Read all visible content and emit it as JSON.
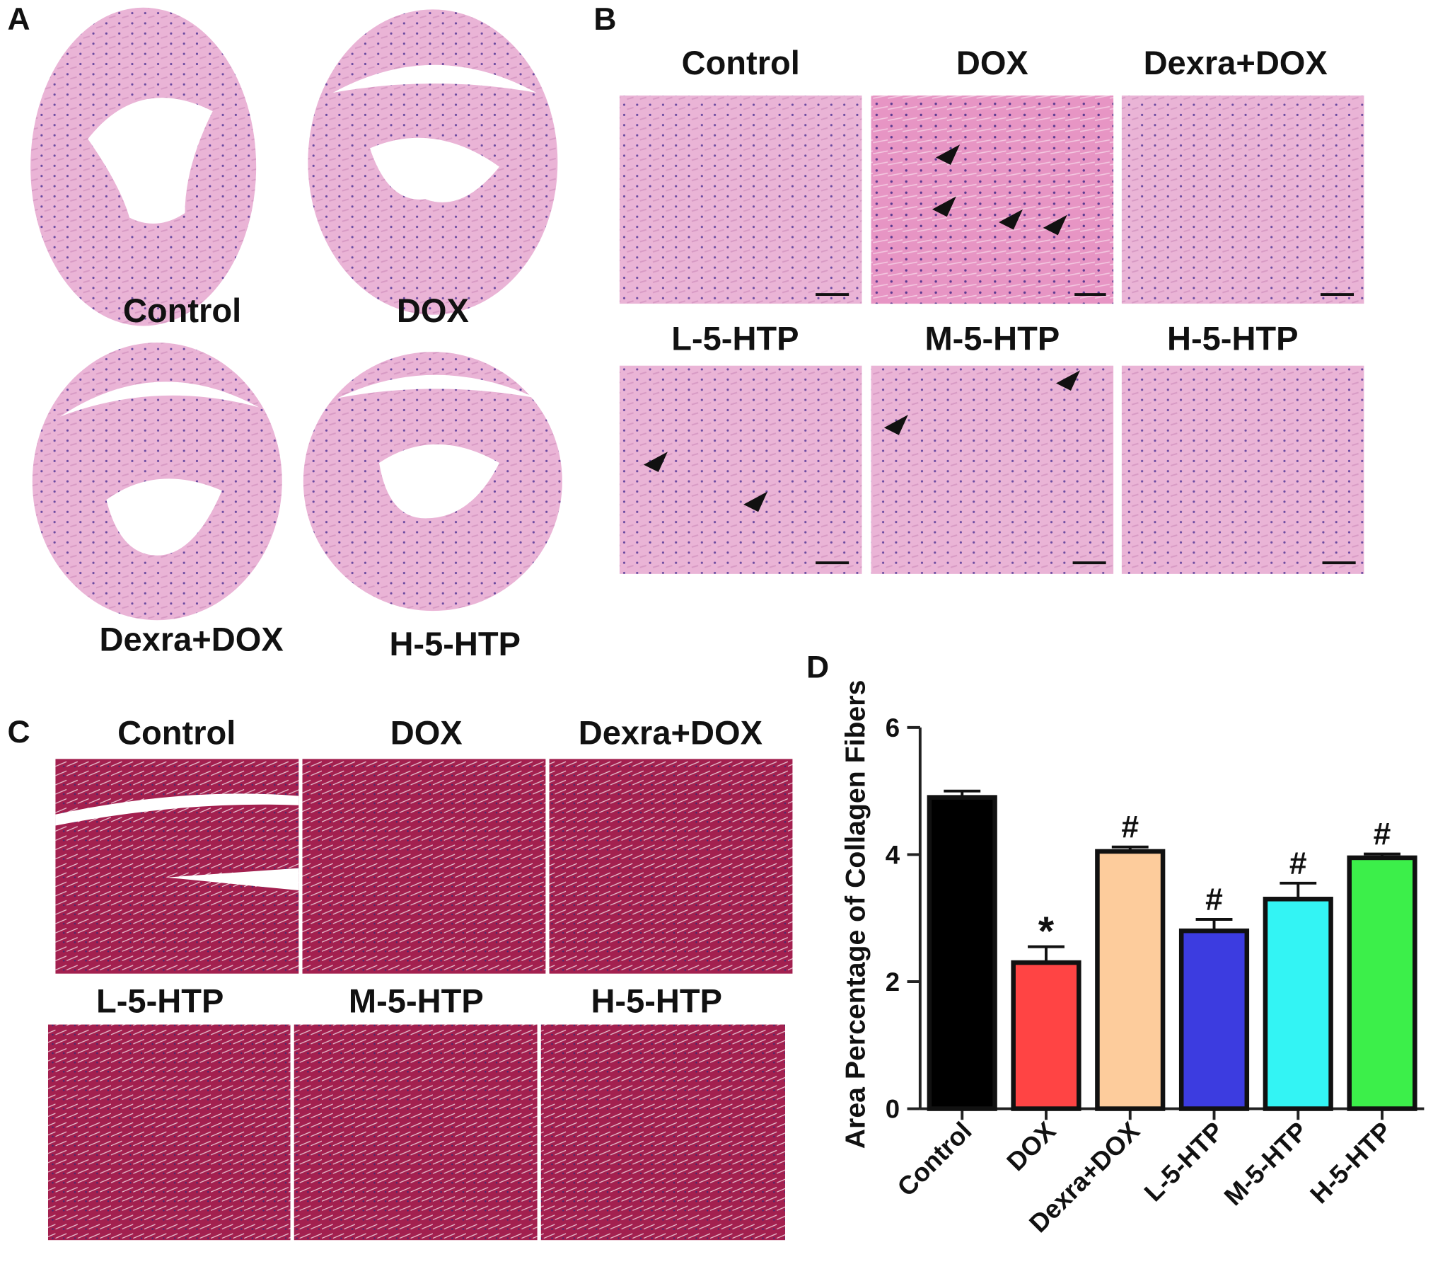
{
  "panel_a": {
    "panel_label": "A",
    "labels": [
      "Control",
      "DOX",
      "Dexra+DOX",
      "H-5-HTP"
    ]
  },
  "panel_b": {
    "panel_label": "B",
    "labels": [
      "Control",
      "DOX",
      "Dexra+DOX",
      "L-5-HTP",
      "M-5-HTP",
      "H-5-HTP"
    ]
  },
  "panel_c": {
    "panel_label": "C",
    "labels": [
      "Control",
      "DOX",
      "Dexra+DOX",
      "L-5-HTP",
      "M-5-HTP",
      "H-5-HTP"
    ]
  },
  "chart_data": {
    "type": "bar",
    "panel_label": "D",
    "y_label": "Area Percentage of Collagen Fibers",
    "categories": [
      "Control",
      "DOX",
      "Dexra+DOX",
      "L-5-HTP",
      "M-5-HTP",
      "H-5-HTP"
    ],
    "values": [
      4.9,
      2.3,
      4.05,
      2.8,
      3.3,
      3.95
    ],
    "errors": [
      0.1,
      0.25,
      0.07,
      0.18,
      0.25,
      0.06
    ],
    "colors": [
      "#000000",
      "#ff4444",
      "#fdcc9c",
      "#3c3ce0",
      "#33f4f4",
      "#3cef4a"
    ],
    "annotations": [
      {
        "category": "DOX",
        "text": "*"
      },
      {
        "category": "Dexra+DOX",
        "text": "#"
      },
      {
        "category": "L-5-HTP",
        "text": "#"
      },
      {
        "category": "M-5-HTP",
        "text": "#"
      },
      {
        "category": "H-5-HTP",
        "text": "#"
      }
    ],
    "ylim": [
      0,
      6
    ],
    "yticks": [
      0,
      2,
      4,
      6
    ]
  }
}
